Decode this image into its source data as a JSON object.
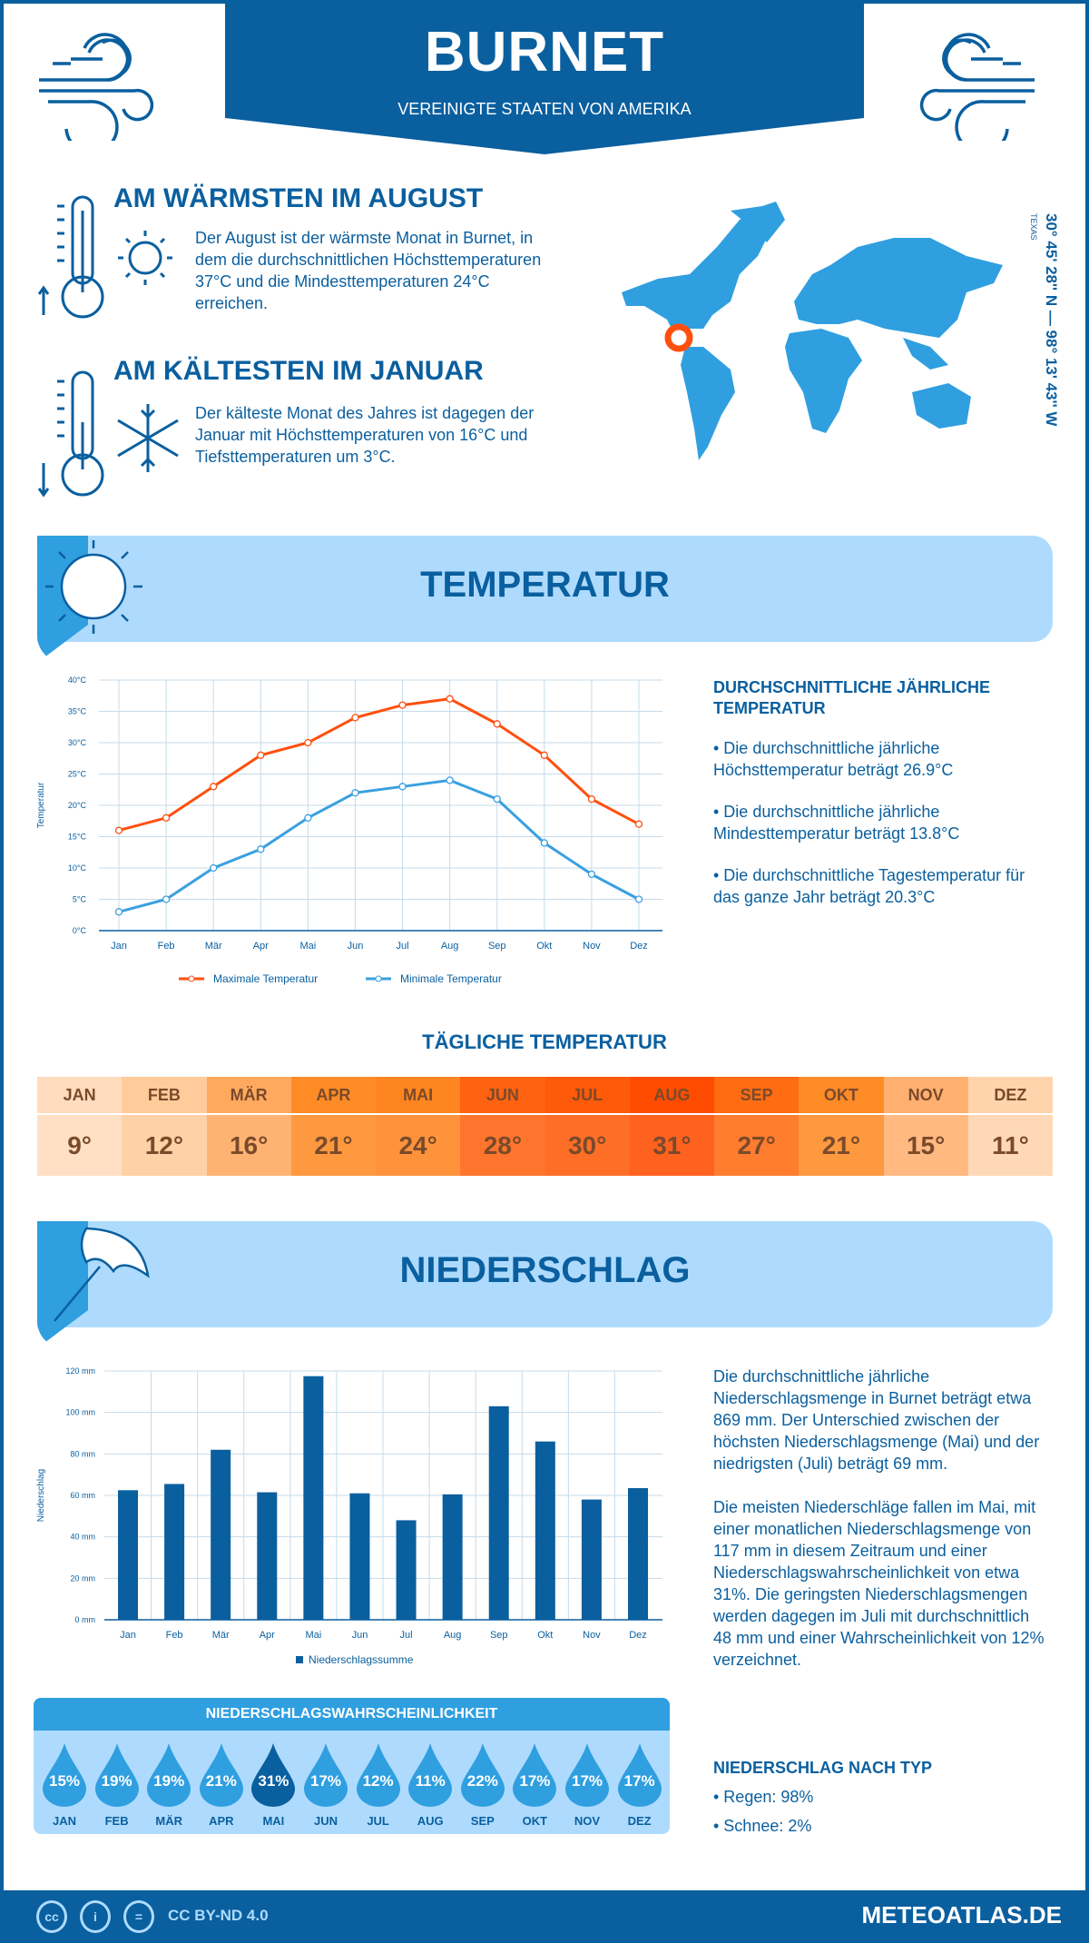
{
  "header": {
    "title": "BURNET",
    "subtitle": "VEREINIGTE STAATEN VON AMERIKA"
  },
  "warmest": {
    "title": "AM WÄRMSTEN IM AUGUST",
    "text": "Der August ist der wärmste Monat in Burnet, in dem die durchschnittlichen Höchsttemperaturen 37°C und die Mindesttemperaturen 24°C erreichen."
  },
  "coldest": {
    "title": "AM KÄLTESTEN IM JANUAR",
    "text": "Der kälteste Monat des Jahres ist dagegen der Januar mit Höchsttemperaturen von 16°C und Tiefsttemperaturen um 3°C."
  },
  "location": {
    "coords": "30° 45' 28'' N — 98° 13' 43'' W",
    "region": "TEXAS"
  },
  "colors": {
    "dark_blue": "#0a5f9f",
    "mid_blue": "#2f9fe0",
    "light_blue": "#aedbfd",
    "max_temp": "#ff4f0f",
    "min_temp": "#3aa0e0",
    "marker": "#ff4f0f"
  },
  "temperature": {
    "title": "TEMPERATUR",
    "side_heading": "DURCHSCHNITTLICHE JÄHRLICHE TEMPERATUR",
    "bullets": [
      "• Die durchschnittliche jährliche Höchsttemperatur beträgt 26.9°C",
      "• Die durchschnittliche jährliche Mindesttemperatur beträgt 13.8°C",
      "• Die durchschnittliche Tagestemperatur für das ganze Jahr beträgt 20.3°C"
    ],
    "daily_title": "TÄGLICHE TEMPERATUR",
    "daily": [
      {
        "month": "JAN",
        "value": "9°",
        "color": "#ffdcbd"
      },
      {
        "month": "FEB",
        "value": "12°",
        "color": "#ffcb9a"
      },
      {
        "month": "MÄR",
        "value": "16°",
        "color": "#ffa95f"
      },
      {
        "month": "APR",
        "value": "21°",
        "color": "#ff8b26"
      },
      {
        "month": "MAI",
        "value": "24°",
        "color": "#ff8520"
      },
      {
        "month": "JUN",
        "value": "28°",
        "color": "#ff6210"
      },
      {
        "month": "JUL",
        "value": "30°",
        "color": "#ff5a0a"
      },
      {
        "month": "AUG",
        "value": "31°",
        "color": "#ff4c00"
      },
      {
        "month": "SEP",
        "value": "27°",
        "color": "#ff6c12"
      },
      {
        "month": "OKT",
        "value": "21°",
        "color": "#ff8b26"
      },
      {
        "month": "NOV",
        "value": "15°",
        "color": "#ffb070"
      },
      {
        "month": "DEZ",
        "value": "11°",
        "color": "#ffd4ad"
      }
    ]
  },
  "chart_data": [
    {
      "type": "line",
      "ylabel": "Temperatur",
      "xlabel": "",
      "ylim": [
        0,
        40
      ],
      "yticks": [
        "0°C",
        "5°C",
        "10°C",
        "15°C",
        "20°C",
        "25°C",
        "30°C",
        "35°C",
        "40°C"
      ],
      "grid": true,
      "legend": "bottom",
      "categories": [
        "Jan",
        "Feb",
        "Mär",
        "Apr",
        "Mai",
        "Jun",
        "Jul",
        "Aug",
        "Sep",
        "Okt",
        "Nov",
        "Dez"
      ],
      "series": [
        {
          "name": "Maximale Temperatur",
          "values": [
            16,
            18,
            23,
            28,
            30,
            34,
            36,
            37,
            33,
            28,
            21,
            17
          ]
        },
        {
          "name": "Minimale Temperatur",
          "values": [
            3,
            5,
            10,
            13,
            18,
            22,
            23,
            24,
            21,
            14,
            9,
            5
          ]
        }
      ]
    },
    {
      "type": "bar",
      "ylabel": "Niederschlag",
      "xlabel": "",
      "ylim": [
        0,
        120
      ],
      "yticks": [
        "0 mm",
        "20 mm",
        "40 mm",
        "60 mm",
        "80 mm",
        "100 mm",
        "120 mm"
      ],
      "grid": true,
      "legend": "bottom",
      "categories": [
        "Jan",
        "Feb",
        "Mär",
        "Apr",
        "Mai",
        "Jun",
        "Jul",
        "Aug",
        "Sep",
        "Okt",
        "Nov",
        "Dez"
      ],
      "series": [
        {
          "name": "Niederschlagssumme",
          "values": [
            62.5,
            65.5,
            82,
            61.5,
            117.5,
            61,
            48,
            60.5,
            103,
            86,
            58,
            63.5
          ]
        }
      ]
    }
  ],
  "precipitation": {
    "title": "NIEDERSCHLAG",
    "para1": "Die durchschnittliche jährliche Niederschlagsmenge in Burnet beträgt etwa 869 mm. Der Unterschied zwischen der höchsten Niederschlagsmenge (Mai) und der niedrigsten (Juli) beträgt 69 mm.",
    "para2": "Die meisten Niederschläge fallen im Mai, mit einer monatlichen Niederschlagsmenge von 117 mm in diesem Zeitraum und einer Niederschlagswahrscheinlichkeit von etwa 31%. Die geringsten Niederschlagsmengen werden dagegen im Juli mit durchschnittlich 48 mm und einer Wahrscheinlichkeit von 12% verzeichnet.",
    "prob_title": "NIEDERSCHLAGSWAHRSCHEINLICHKEIT",
    "prob": [
      {
        "month": "JAN",
        "value": "15%"
      },
      {
        "month": "FEB",
        "value": "19%"
      },
      {
        "month": "MÄR",
        "value": "19%"
      },
      {
        "month": "APR",
        "value": "21%"
      },
      {
        "month": "MAI",
        "value": "31%",
        "highlight": true
      },
      {
        "month": "JUN",
        "value": "17%"
      },
      {
        "month": "JUL",
        "value": "12%"
      },
      {
        "month": "AUG",
        "value": "11%"
      },
      {
        "month": "SEP",
        "value": "22%"
      },
      {
        "month": "OKT",
        "value": "17%"
      },
      {
        "month": "NOV",
        "value": "17%"
      },
      {
        "month": "DEZ",
        "value": "17%"
      }
    ],
    "type_heading": "NIEDERSCHLAG NACH TYP",
    "types": [
      "• Regen: 98%",
      "• Schnee: 2%"
    ]
  },
  "footer": {
    "license": "CC BY-ND 4.0",
    "site": "METEOATLAS.DE",
    "cc": "cc"
  }
}
